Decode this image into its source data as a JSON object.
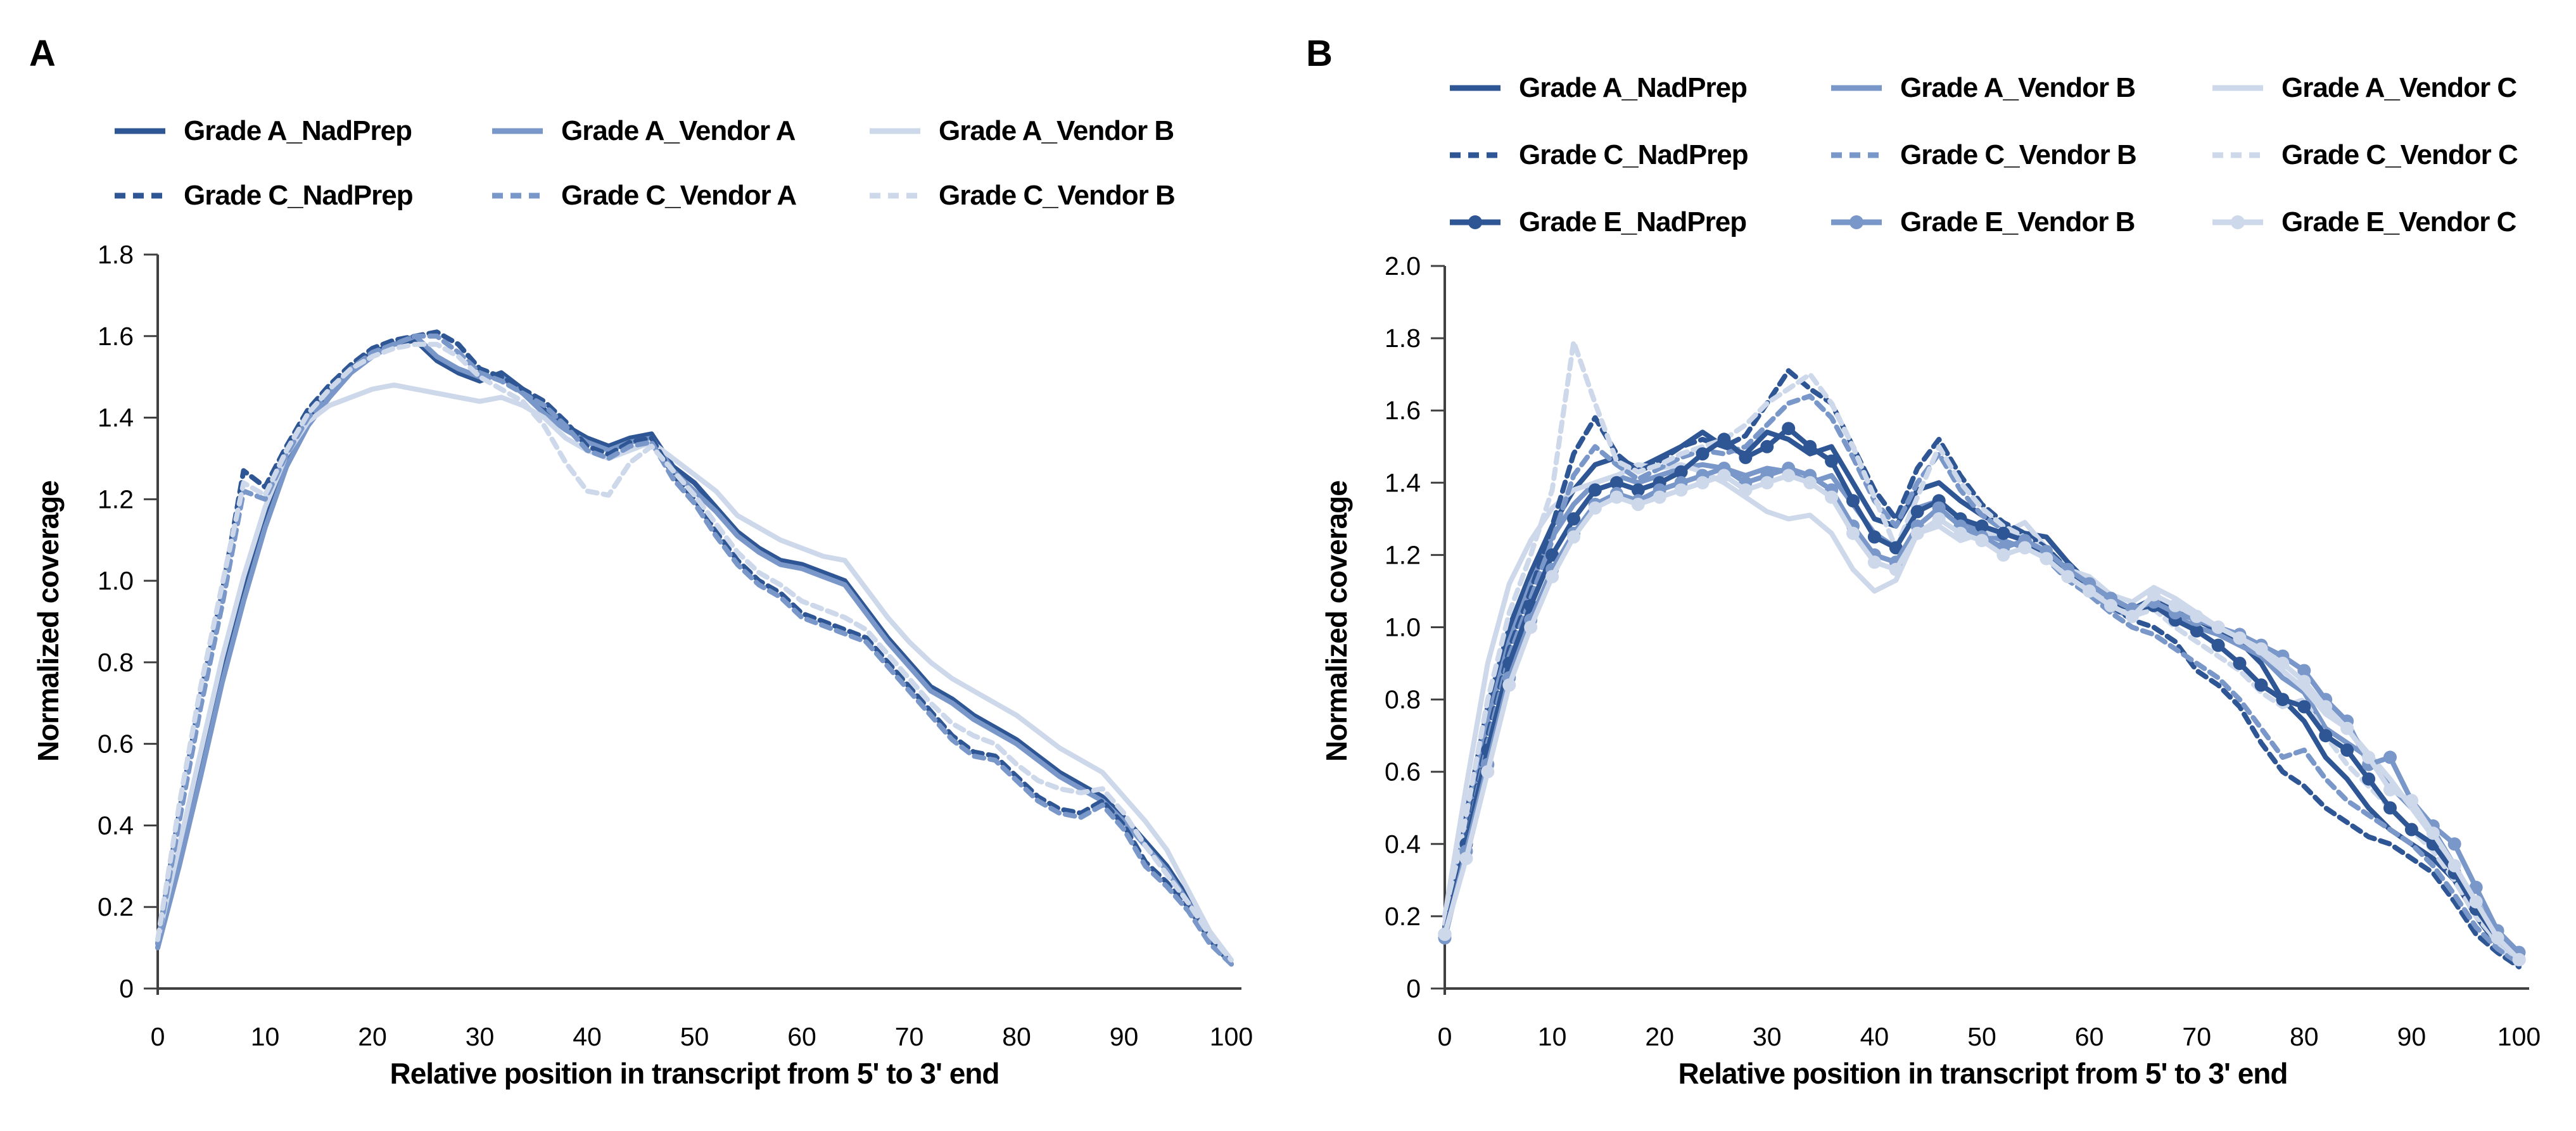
{
  "palette": {
    "dark": "#2F5694",
    "medium": "#7A97C9",
    "light": "#CDD8EA"
  },
  "axis_color": "#404040",
  "text_color": "#000000",
  "chart_data": [
    {
      "panel_label": "A",
      "type": "line",
      "xlabel": "Relative position in transcript from 5' to 3' end",
      "ylabel": "Normalized coverage",
      "xlim": [
        0,
        100
      ],
      "ylim": [
        0,
        1.8
      ],
      "x_tick_step": 10,
      "y_tick_step": 0.2,
      "grid": false,
      "legend_position": "top",
      "legend_columns": 3,
      "x": [
        0,
        2,
        4,
        6,
        8,
        10,
        12,
        14,
        16,
        18,
        20,
        22,
        24,
        26,
        28,
        30,
        32,
        34,
        36,
        38,
        40,
        42,
        44,
        46,
        48,
        50,
        52,
        54,
        56,
        58,
        60,
        62,
        64,
        66,
        68,
        70,
        72,
        74,
        76,
        78,
        80,
        82,
        84,
        86,
        88,
        90,
        92,
        94,
        96,
        98,
        100
      ],
      "series": [
        {
          "name": "Grade A_NadPrep",
          "shade": "dark",
          "dash": false,
          "markers": false,
          "values": [
            0.1,
            0.33,
            0.56,
            0.79,
            0.99,
            1.16,
            1.3,
            1.4,
            1.47,
            1.52,
            1.56,
            1.58,
            1.59,
            1.54,
            1.51,
            1.49,
            1.51,
            1.47,
            1.42,
            1.38,
            1.35,
            1.33,
            1.35,
            1.36,
            1.28,
            1.24,
            1.18,
            1.12,
            1.08,
            1.05,
            1.04,
            1.02,
            1.0,
            0.93,
            0.86,
            0.8,
            0.74,
            0.71,
            0.67,
            0.64,
            0.61,
            0.57,
            0.53,
            0.5,
            0.47,
            0.42,
            0.36,
            0.3,
            0.22,
            0.13,
            0.06
          ]
        },
        {
          "name": "Grade A_Vendor A",
          "shade": "medium",
          "dash": false,
          "markers": false,
          "values": [
            0.1,
            0.3,
            0.52,
            0.75,
            0.95,
            1.13,
            1.28,
            1.38,
            1.45,
            1.51,
            1.55,
            1.58,
            1.6,
            1.55,
            1.52,
            1.5,
            1.5,
            1.46,
            1.41,
            1.37,
            1.34,
            1.32,
            1.34,
            1.35,
            1.27,
            1.22,
            1.17,
            1.11,
            1.07,
            1.04,
            1.03,
            1.01,
            0.99,
            0.92,
            0.85,
            0.79,
            0.73,
            0.7,
            0.66,
            0.63,
            0.6,
            0.56,
            0.52,
            0.49,
            0.46,
            0.41,
            0.35,
            0.29,
            0.21,
            0.12,
            0.06
          ]
        },
        {
          "name": "Grade A_Vendor B",
          "shade": "light",
          "dash": false,
          "markers": false,
          "values": [
            0.12,
            0.35,
            0.58,
            0.81,
            1.01,
            1.18,
            1.31,
            1.39,
            1.43,
            1.45,
            1.47,
            1.48,
            1.47,
            1.46,
            1.45,
            1.44,
            1.45,
            1.43,
            1.4,
            1.35,
            1.32,
            1.3,
            1.32,
            1.34,
            1.3,
            1.26,
            1.22,
            1.16,
            1.13,
            1.1,
            1.08,
            1.06,
            1.05,
            0.98,
            0.91,
            0.85,
            0.8,
            0.76,
            0.73,
            0.7,
            0.67,
            0.63,
            0.59,
            0.56,
            0.53,
            0.47,
            0.41,
            0.34,
            0.24,
            0.14,
            0.07
          ]
        },
        {
          "name": "Grade C_NadPrep",
          "shade": "dark",
          "dash": true,
          "markers": false,
          "values": [
            0.11,
            0.43,
            0.72,
            0.97,
            1.27,
            1.23,
            1.33,
            1.42,
            1.48,
            1.53,
            1.57,
            1.59,
            1.6,
            1.61,
            1.58,
            1.52,
            1.5,
            1.47,
            1.44,
            1.39,
            1.33,
            1.31,
            1.34,
            1.35,
            1.26,
            1.2,
            1.12,
            1.05,
            1.0,
            0.97,
            0.92,
            0.9,
            0.88,
            0.86,
            0.8,
            0.74,
            0.68,
            0.62,
            0.58,
            0.57,
            0.52,
            0.47,
            0.44,
            0.43,
            0.46,
            0.4,
            0.31,
            0.26,
            0.2,
            0.12,
            0.06
          ]
        },
        {
          "name": "Grade C_Vendor A",
          "shade": "medium",
          "dash": true,
          "markers": false,
          "values": [
            0.11,
            0.41,
            0.69,
            0.94,
            1.22,
            1.2,
            1.31,
            1.4,
            1.46,
            1.52,
            1.56,
            1.58,
            1.6,
            1.6,
            1.56,
            1.51,
            1.49,
            1.46,
            1.43,
            1.38,
            1.32,
            1.3,
            1.33,
            1.34,
            1.25,
            1.19,
            1.11,
            1.04,
            0.99,
            0.96,
            0.91,
            0.89,
            0.87,
            0.85,
            0.79,
            0.73,
            0.67,
            0.61,
            0.57,
            0.56,
            0.51,
            0.46,
            0.43,
            0.42,
            0.45,
            0.39,
            0.3,
            0.25,
            0.19,
            0.11,
            0.06
          ]
        },
        {
          "name": "Grade C_Vendor B",
          "shade": "light",
          "dash": true,
          "markers": false,
          "values": [
            0.12,
            0.45,
            0.74,
            0.99,
            1.24,
            1.21,
            1.32,
            1.41,
            1.47,
            1.52,
            1.55,
            1.57,
            1.58,
            1.58,
            1.55,
            1.5,
            1.47,
            1.44,
            1.38,
            1.29,
            1.22,
            1.21,
            1.29,
            1.33,
            1.27,
            1.21,
            1.14,
            1.07,
            1.02,
            0.99,
            0.95,
            0.93,
            0.91,
            0.88,
            0.82,
            0.76,
            0.7,
            0.65,
            0.62,
            0.6,
            0.55,
            0.51,
            0.49,
            0.48,
            0.49,
            0.43,
            0.35,
            0.28,
            0.21,
            0.13,
            0.07
          ]
        }
      ]
    },
    {
      "panel_label": "B",
      "type": "line",
      "xlabel": "Relative position in transcript from 5' to 3' end",
      "ylabel": "Normalized coverage",
      "xlim": [
        0,
        100
      ],
      "ylim": [
        0,
        2.0
      ],
      "x_tick_step": 10,
      "y_tick_step": 0.2,
      "grid": false,
      "legend_position": "top",
      "legend_columns": 3,
      "x": [
        0,
        2,
        4,
        6,
        8,
        10,
        12,
        14,
        16,
        18,
        20,
        22,
        24,
        26,
        28,
        30,
        32,
        34,
        36,
        38,
        40,
        42,
        44,
        46,
        48,
        50,
        52,
        54,
        56,
        58,
        60,
        62,
        64,
        66,
        68,
        70,
        72,
        74,
        76,
        78,
        80,
        82,
        84,
        86,
        88,
        90,
        92,
        94,
        96,
        98,
        100
      ],
      "series": [
        {
          "name": "Grade A_NadPrep",
          "shade": "dark",
          "dash": false,
          "markers": false,
          "values": [
            0.17,
            0.48,
            0.78,
            1.0,
            1.15,
            1.28,
            1.38,
            1.45,
            1.47,
            1.44,
            1.47,
            1.5,
            1.54,
            1.5,
            1.48,
            1.54,
            1.52,
            1.48,
            1.5,
            1.4,
            1.3,
            1.28,
            1.38,
            1.4,
            1.35,
            1.31,
            1.28,
            1.26,
            1.25,
            1.18,
            1.12,
            1.07,
            1.05,
            1.08,
            1.05,
            1.02,
            0.99,
            0.96,
            0.9,
            0.8,
            0.74,
            0.64,
            0.58,
            0.5,
            0.44,
            0.4,
            0.36,
            0.3,
            0.2,
            0.12,
            0.07
          ]
        },
        {
          "name": "Grade A_Vendor B",
          "shade": "medium",
          "dash": false,
          "markers": false,
          "values": [
            0.16,
            0.45,
            0.74,
            0.96,
            1.12,
            1.25,
            1.34,
            1.4,
            1.42,
            1.4,
            1.42,
            1.44,
            1.45,
            1.44,
            1.42,
            1.44,
            1.43,
            1.4,
            1.42,
            1.34,
            1.26,
            1.22,
            1.33,
            1.35,
            1.3,
            1.26,
            1.24,
            1.22,
            1.2,
            1.14,
            1.1,
            1.05,
            1.03,
            1.06,
            1.03,
            1.0,
            0.98,
            0.95,
            0.92,
            0.86,
            0.82,
            0.72,
            0.68,
            0.64,
            0.56,
            0.5,
            0.44,
            0.34,
            0.24,
            0.15,
            0.09
          ]
        },
        {
          "name": "Grade A_Vendor C",
          "shade": "light",
          "dash": false,
          "markers": false,
          "values": [
            0.2,
            0.56,
            0.9,
            1.12,
            1.24,
            1.33,
            1.38,
            1.4,
            1.42,
            1.45,
            1.44,
            1.45,
            1.43,
            1.4,
            1.36,
            1.32,
            1.3,
            1.31,
            1.26,
            1.16,
            1.1,
            1.13,
            1.26,
            1.28,
            1.24,
            1.26,
            1.26,
            1.29,
            1.22,
            1.16,
            1.14,
            1.09,
            1.07,
            1.11,
            1.08,
            1.04,
            1.0,
            0.97,
            0.93,
            0.88,
            0.83,
            0.76,
            0.72,
            0.65,
            0.58,
            0.5,
            0.42,
            0.32,
            0.22,
            0.12,
            0.06
          ]
        },
        {
          "name": "Grade C_NadPrep",
          "shade": "dark",
          "dash": true,
          "markers": false,
          "values": [
            0.15,
            0.42,
            0.7,
            0.94,
            1.1,
            1.28,
            1.48,
            1.58,
            1.48,
            1.43,
            1.46,
            1.5,
            1.52,
            1.5,
            1.53,
            1.62,
            1.71,
            1.66,
            1.62,
            1.5,
            1.38,
            1.3,
            1.44,
            1.52,
            1.42,
            1.34,
            1.29,
            1.26,
            1.22,
            1.16,
            1.12,
            1.06,
            1.02,
            1.0,
            0.96,
            0.88,
            0.84,
            0.78,
            0.68,
            0.6,
            0.56,
            0.5,
            0.46,
            0.42,
            0.4,
            0.36,
            0.32,
            0.24,
            0.15,
            0.1,
            0.06
          ]
        },
        {
          "name": "Grade C_Vendor B",
          "shade": "medium",
          "dash": true,
          "markers": false,
          "values": [
            0.15,
            0.4,
            0.68,
            0.92,
            1.08,
            1.24,
            1.42,
            1.5,
            1.45,
            1.41,
            1.44,
            1.47,
            1.49,
            1.48,
            1.5,
            1.56,
            1.62,
            1.64,
            1.58,
            1.47,
            1.35,
            1.28,
            1.4,
            1.48,
            1.38,
            1.31,
            1.27,
            1.24,
            1.19,
            1.13,
            1.09,
            1.04,
            1.0,
            0.98,
            0.94,
            0.9,
            0.86,
            0.8,
            0.72,
            0.64,
            0.66,
            0.58,
            0.52,
            0.48,
            0.44,
            0.4,
            0.34,
            0.26,
            0.17,
            0.11,
            0.07
          ]
        },
        {
          "name": "Grade C_Vendor C",
          "shade": "light",
          "dash": true,
          "markers": false,
          "values": [
            0.18,
            0.48,
            0.8,
            1.04,
            1.2,
            1.38,
            1.79,
            1.62,
            1.46,
            1.43,
            1.45,
            1.48,
            1.5,
            1.52,
            1.56,
            1.62,
            1.66,
            1.7,
            1.62,
            1.5,
            1.36,
            1.22,
            1.36,
            1.5,
            1.4,
            1.33,
            1.28,
            1.25,
            1.21,
            1.15,
            1.11,
            1.06,
            1.03,
            1.05,
            1.0,
            0.96,
            0.92,
            0.88,
            0.82,
            0.78,
            0.8,
            0.7,
            0.62,
            0.56,
            0.5,
            0.44,
            0.38,
            0.3,
            0.2,
            0.13,
            0.08
          ]
        },
        {
          "name": "Grade E_NadPrep",
          "shade": "dark",
          "dash": false,
          "markers": true,
          "values": [
            0.15,
            0.4,
            0.66,
            0.9,
            1.06,
            1.2,
            1.3,
            1.38,
            1.4,
            1.38,
            1.4,
            1.43,
            1.48,
            1.52,
            1.47,
            1.5,
            1.55,
            1.5,
            1.46,
            1.35,
            1.25,
            1.22,
            1.32,
            1.35,
            1.3,
            1.28,
            1.26,
            1.24,
            1.2,
            1.15,
            1.12,
            1.08,
            1.05,
            1.06,
            1.02,
            0.99,
            0.95,
            0.9,
            0.84,
            0.8,
            0.78,
            0.7,
            0.66,
            0.58,
            0.5,
            0.44,
            0.4,
            0.32,
            0.22,
            0.14,
            0.08
          ]
        },
        {
          "name": "Grade E_Vendor B",
          "shade": "medium",
          "dash": false,
          "markers": true,
          "values": [
            0.14,
            0.38,
            0.62,
            0.86,
            1.02,
            1.16,
            1.26,
            1.34,
            1.37,
            1.35,
            1.38,
            1.4,
            1.42,
            1.44,
            1.4,
            1.42,
            1.44,
            1.42,
            1.38,
            1.28,
            1.2,
            1.18,
            1.28,
            1.33,
            1.28,
            1.25,
            1.22,
            1.24,
            1.21,
            1.16,
            1.12,
            1.08,
            1.05,
            1.07,
            1.04,
            1.02,
            1.0,
            0.98,
            0.95,
            0.92,
            0.88,
            0.8,
            0.74,
            0.62,
            0.64,
            0.52,
            0.45,
            0.4,
            0.28,
            0.16,
            0.1
          ]
        },
        {
          "name": "Grade E_Vendor C",
          "shade": "light",
          "dash": false,
          "markers": true,
          "values": [
            0.15,
            0.36,
            0.6,
            0.84,
            1.0,
            1.14,
            1.25,
            1.33,
            1.36,
            1.34,
            1.36,
            1.38,
            1.4,
            1.42,
            1.38,
            1.4,
            1.42,
            1.4,
            1.36,
            1.26,
            1.18,
            1.16,
            1.26,
            1.3,
            1.26,
            1.24,
            1.2,
            1.22,
            1.19,
            1.14,
            1.1,
            1.06,
            1.03,
            1.09,
            1.06,
            1.03,
            1.0,
            0.97,
            0.94,
            0.9,
            0.85,
            0.78,
            0.72,
            0.64,
            0.55,
            0.52,
            0.43,
            0.34,
            0.24,
            0.14,
            0.08
          ]
        }
      ]
    }
  ]
}
